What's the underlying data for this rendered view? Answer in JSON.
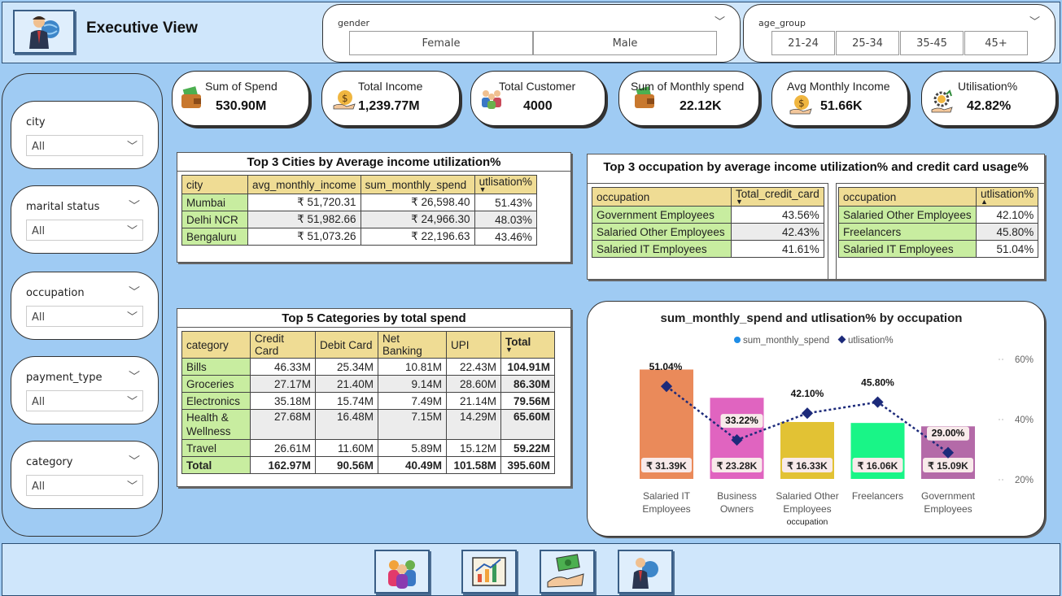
{
  "header": {
    "title": "Executive View"
  },
  "filters": {
    "gender": {
      "label": "gender",
      "options": [
        "Female",
        "Male"
      ]
    },
    "age_group": {
      "label": "age_group",
      "options": [
        "21-24",
        "25-34",
        "35-45",
        "45+"
      ]
    }
  },
  "left_slicers": [
    {
      "label": "city",
      "value": "All"
    },
    {
      "label": "marital status",
      "value": "All"
    },
    {
      "label": "occupation",
      "value": "All"
    },
    {
      "label": "payment_type",
      "value": "All"
    },
    {
      "label": "category",
      "value": "All"
    }
  ],
  "kpis": [
    {
      "title": "Sum of Spend",
      "value": "530.90M",
      "icon": "wallet-icon"
    },
    {
      "title": "Total Income",
      "value": "1,239.77M",
      "icon": "money-bag-hand-icon"
    },
    {
      "title": "Total Customer",
      "value": "4000",
      "icon": "people-group-icon"
    },
    {
      "title": "Sum of Monthly spend",
      "value": "22.12K",
      "icon": "wallet-icon"
    },
    {
      "title": "Avg Monthly Income",
      "value": "51.66K",
      "icon": "money-bag-hand-icon"
    },
    {
      "title": "Utilisation%",
      "value": "42.82%",
      "icon": "gear-dollar-hand-icon"
    }
  ],
  "top_cities": {
    "title": "Top 3 Cities by Average income utilization%",
    "headers": [
      "city",
      "avg_monthly_income",
      "sum_monthly_spend",
      "utlisation%"
    ],
    "rows": [
      [
        "Mumbai",
        "₹ 51,720.31",
        "₹ 26,598.40",
        "51.43%"
      ],
      [
        "Delhi NCR",
        "₹ 51,982.66",
        "₹ 24,966.30",
        "48.03%"
      ],
      [
        "Bengaluru",
        "₹ 51,073.26",
        "₹ 22,196.63",
        "43.46%"
      ]
    ]
  },
  "top_occupation": {
    "title": "Top 3 occupation by average income utilization% and credit card usage%",
    "left": {
      "headers": [
        "occupation",
        "Total_credit_card"
      ],
      "rows": [
        [
          "Government Employees",
          "43.56%"
        ],
        [
          "Salaried Other Employees",
          "42.43%"
        ],
        [
          "Salaried IT Employees",
          "41.61%"
        ]
      ]
    },
    "right": {
      "headers": [
        "occupation",
        "utlisation%"
      ],
      "rows": [
        [
          "Salaried Other Employees",
          "42.10%"
        ],
        [
          "Freelancers",
          "45.80%"
        ],
        [
          "Salaried IT Employees",
          "51.04%"
        ]
      ]
    }
  },
  "top_categories": {
    "title": "Top 5 Categories by total spend",
    "headers": [
      "category",
      "Credit Card",
      "Debit Card",
      "Net Banking",
      "UPI",
      "Total"
    ],
    "rows": [
      [
        "Bills",
        "46.33M",
        "25.34M",
        "10.81M",
        "22.43M",
        "104.91M"
      ],
      [
        "Groceries",
        "27.17M",
        "21.40M",
        "9.14M",
        "28.60M",
        "86.30M"
      ],
      [
        "Electronics",
        "35.18M",
        "15.74M",
        "7.49M",
        "21.14M",
        "79.56M"
      ],
      [
        "Health & Wellness",
        "27.68M",
        "16.48M",
        "7.15M",
        "14.29M",
        "65.60M"
      ],
      [
        "Travel",
        "26.61M",
        "11.60M",
        "5.89M",
        "15.12M",
        "59.22M"
      ]
    ],
    "total_row": [
      "Total",
      "162.97M",
      "90.56M",
      "40.49M",
      "101.58M",
      "395.60M"
    ]
  },
  "chart_data": {
    "type": "bar",
    "title": "sum_monthly_spend and utlisation% by occupation",
    "xlabel": "occupation",
    "categories": [
      "Salaried IT Employees",
      "Business Owners",
      "Salaried Other Employees",
      "Freelancers",
      "Government Employees"
    ],
    "series": [
      {
        "name": "sum_monthly_spend",
        "type": "bar",
        "values": [
          31.39,
          23.28,
          16.33,
          16.06,
          15.09
        ],
        "labels": [
          "₹ 31.39K",
          "₹ 23.28K",
          "₹ 16.33K",
          "₹ 16.06K",
          "₹ 15.09K"
        ],
        "colors": [
          "#ea8a5a",
          "#e064c0",
          "#e2c234",
          "#19f587",
          "#b46aa8"
        ]
      },
      {
        "name": "utlisation%",
        "type": "line",
        "values": [
          51.04,
          33.22,
          42.1,
          45.8,
          29.0
        ],
        "labels": [
          "51.04%",
          "33.22%",
          "42.10%",
          "45.80%",
          "29.00%"
        ],
        "color": "#1c2a7a"
      }
    ],
    "y2_ticks": [
      "60%",
      "40%",
      "20%"
    ],
    "y2lim": [
      20,
      60
    ],
    "legend": {
      "position": "top",
      "colors": [
        "#1f8de6",
        "#1c2a7a"
      ]
    }
  },
  "footer_nav": [
    {
      "name": "customers-nav-icon"
    },
    {
      "name": "analytics-nav-icon"
    },
    {
      "name": "payment-nav-icon"
    },
    {
      "name": "executive-nav-icon"
    }
  ]
}
